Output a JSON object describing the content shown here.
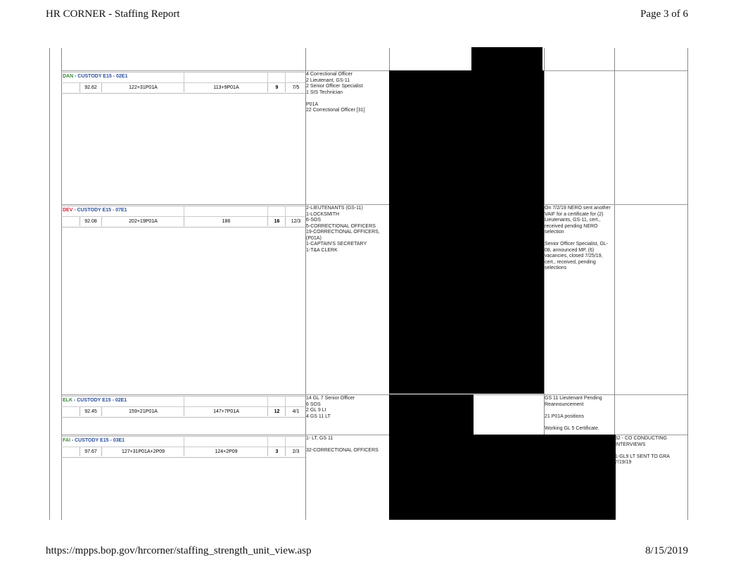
{
  "header": {
    "title": "HR CORNER - Staffing Report",
    "page": "Page 3 of 6"
  },
  "footer": {
    "url": "https://mpps.bop.gov/hrcorner/staffing_strength_unit_view.asp",
    "date": "8/15/2019"
  },
  "units": [
    {
      "code": "DAN",
      "name": " - CUSTODY E15 - 02E1",
      "pct": "92.62",
      "authorized": "122+31P01A",
      "onboard": "113+9P01A",
      "vacancies": "9",
      "ratio": "7/5",
      "positions": "4 Correctional Officer\n2 Lieutenant, GS-11\n2 Senior Officer Specialist\n1 SIS Technician\n\nP01A\n22 Correctional Officer [31]",
      "notes": "",
      "notes2": ""
    },
    {
      "code": "DEV",
      "name": " - CUSTODY E15 - 07E1",
      "pct": "92.08",
      "authorized": "202+19P01A",
      "onboard": "186",
      "vacancies": "16",
      "ratio": "12/3",
      "positions": "2-LIEUTENANTS (GS-11)\n1-LOCKSMITH\n6-SOS\n5-CORRECTIONAL OFFICERS\n19-CORRECTIONAL OFFICERS,\n(P01A)\n1-CAPTAIN'S SECRETARY\n1-T&A CLERK",
      "notes": "On 7/2/19 NERO sent another\nVAIF for a certificate for (2)\nLieutenants, GS-11, cert.,\nreceived pending NERO\nselection\n\nSenior Officer Specialist, GL-\n08, announced MP, (6)\nvacancies, closed 7/25/19,\ncert., received, pending\nselections",
      "notes2": ""
    },
    {
      "code": "ELK",
      "name": " - CUSTODY E15 - 02E1",
      "pct": "92.45",
      "authorized": "159+21P01A",
      "onboard": "147+7P01A",
      "vacancies": "12",
      "ratio": "4/1",
      "positions": "14 GL 7 Senior Officer\n6 SOS\n2 GL 9 Lt\n4 GS 11 LT",
      "notes": "GS 11 Lieutenant Pending\nReannouncement\n\n21 P01A positions\n\nWorking GL 5 Certificate.",
      "notes2": ""
    },
    {
      "code": "FAI",
      "name": " - CUSTODY E15 - 03E1",
      "pct": "97.67",
      "authorized": "127+31P01A+2P09",
      "onboard": "124+2P09",
      "vacancies": "3",
      "ratio": "2/3",
      "positions": "1- LT, GS 11\n\n32-CORRECTIONAL OFFICERS",
      "notes": "",
      "notes2": "32 - CO CONDUCTING\nINTERVIEWS\n\n1-GL9 LT SENT TO GRA\n7/19/19"
    }
  ]
}
